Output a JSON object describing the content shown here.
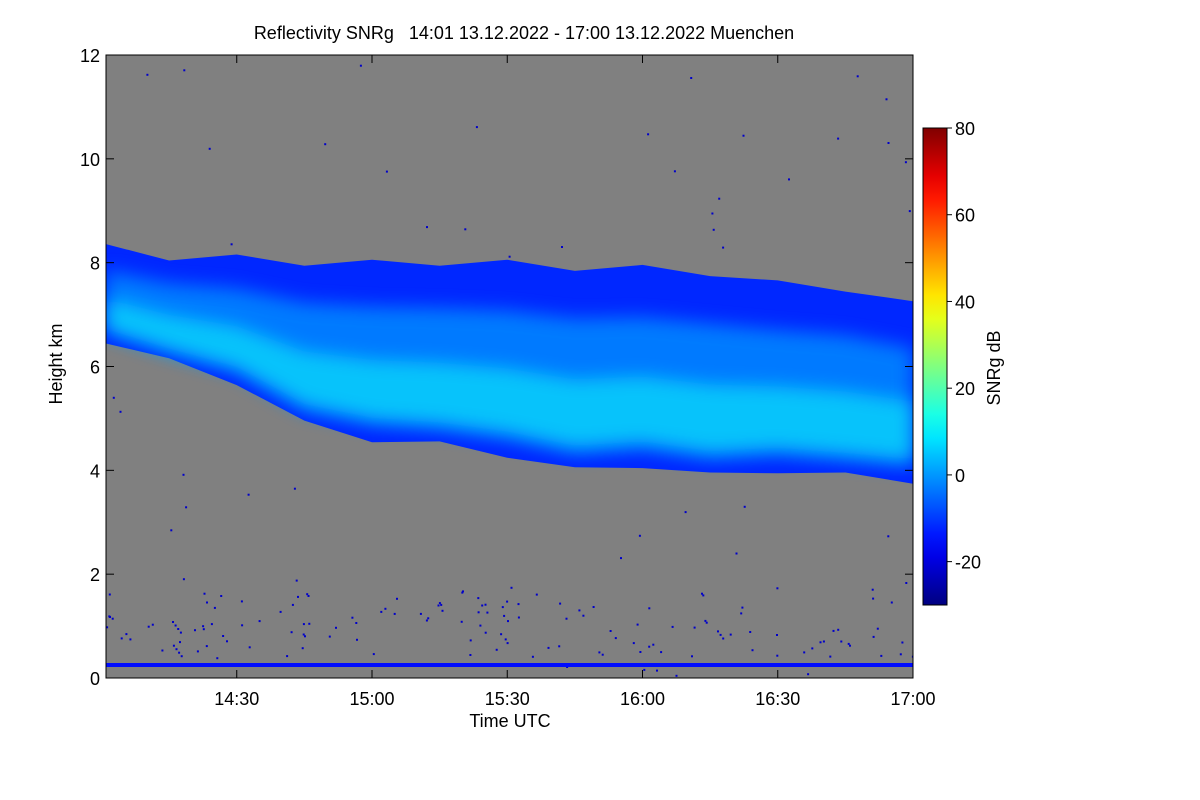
{
  "chart_data": {
    "type": "heatmap",
    "title": "Reflectivity SNRg   14:01 13.12.2022 - 17:00 13.12.2022 Muenchen",
    "xlabel": "Time UTC",
    "ylabel": "Height km",
    "xlim": [
      "14:01",
      "17:00"
    ],
    "ylim": [
      0,
      12
    ],
    "x_ticks": [
      "14:30",
      "15:00",
      "15:30",
      "16:00",
      "16:30",
      "17:00"
    ],
    "y_ticks": [
      0,
      2,
      4,
      6,
      8,
      10,
      12
    ],
    "background_color": "#808080",
    "colorbar": {
      "label": "SNRg dB",
      "range": [
        -30,
        80
      ],
      "ticks": [
        -20,
        0,
        20,
        40,
        60,
        80
      ],
      "colormap": "jet"
    },
    "cloud_layer": {
      "time": [
        "14:01",
        "14:15",
        "14:30",
        "14:45",
        "15:00",
        "15:15",
        "15:30",
        "15:45",
        "16:00",
        "16:15",
        "16:30",
        "16:45",
        "17:00"
      ],
      "top_km": [
        8.3,
        8.1,
        8.1,
        8.0,
        8.0,
        8.0,
        8.0,
        7.9,
        7.9,
        7.8,
        7.6,
        7.5,
        7.2
      ],
      "base_km": [
        6.5,
        6.1,
        5.7,
        4.9,
        4.6,
        4.5,
        4.3,
        4.0,
        4.1,
        3.9,
        4.0,
        3.9,
        3.8
      ],
      "peak_snr_db": [
        -5,
        -5,
        0,
        5,
        5,
        5,
        10,
        12,
        8,
        6,
        5,
        5,
        4
      ]
    },
    "surface_layer": {
      "height_km": 0.25,
      "snr_db": -15
    }
  }
}
